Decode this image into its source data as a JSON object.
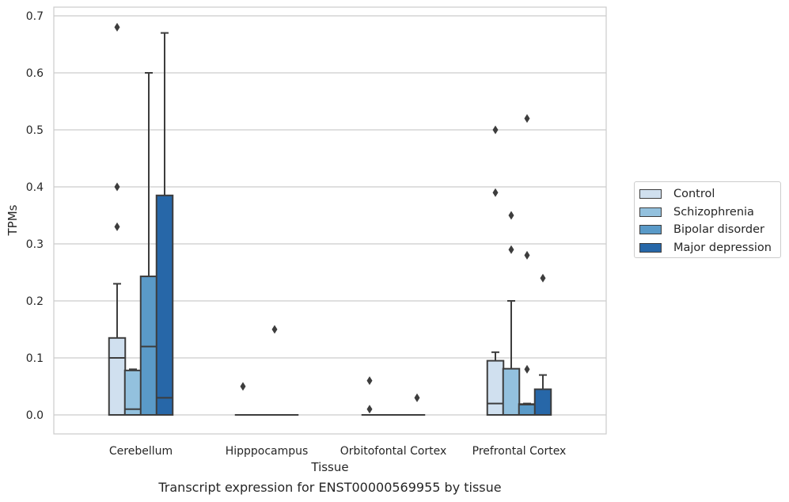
{
  "caption": "Transcript expression for ENST00000569955 by tissue",
  "chart_data": {
    "type": "box",
    "title": "",
    "xlabel": "Tissue",
    "ylabel": "TPMs",
    "ylim": [
      -0.033,
      0.716
    ],
    "yticks": [
      0.0,
      0.1,
      0.2,
      0.3,
      0.4,
      0.5,
      0.6,
      0.7
    ],
    "ytick_labels": [
      "0.0",
      "0.1",
      "0.2",
      "0.3",
      "0.4",
      "0.5",
      "0.6",
      "0.7"
    ],
    "grid": "horizontal",
    "legend_position": "right",
    "categories": [
      "Cerebellum",
      "Hipppocampus",
      "Orbitofontal Cortex",
      "Prefrontal Cortex"
    ],
    "series": [
      {
        "name": "Control",
        "color": "#d0e0ef",
        "boxes": [
          {
            "q1": 0.0,
            "median": 0.1,
            "q3": 0.135,
            "whisker_low": 0.0,
            "whisker_high": 0.23,
            "outliers": [
              0.68,
              0.4,
              0.33
            ]
          },
          {
            "q1": 0.0,
            "median": 0.0,
            "q3": 0.0,
            "whisker_low": 0.0,
            "whisker_high": 0.0,
            "outliers": [
              0.05
            ]
          },
          {
            "q1": 0.0,
            "median": 0.0,
            "q3": 0.0,
            "whisker_low": 0.0,
            "whisker_high": 0.0,
            "outliers": [
              0.06,
              0.01
            ]
          },
          {
            "q1": 0.0,
            "median": 0.02,
            "q3": 0.095,
            "whisker_low": 0.0,
            "whisker_high": 0.11,
            "outliers": [
              0.5,
              0.39
            ]
          }
        ]
      },
      {
        "name": "Schizophrenia",
        "color": "#93c1de",
        "boxes": [
          {
            "q1": 0.0,
            "median": 0.01,
            "q3": 0.078,
            "whisker_low": 0.0,
            "whisker_high": 0.08,
            "outliers": []
          },
          {
            "q1": 0.0,
            "median": 0.0,
            "q3": 0.0,
            "whisker_low": 0.0,
            "whisker_high": 0.0,
            "outliers": []
          },
          {
            "q1": 0.0,
            "median": 0.0,
            "q3": 0.0,
            "whisker_low": 0.0,
            "whisker_high": 0.0,
            "outliers": []
          },
          {
            "q1": 0.0,
            "median": 0.0,
            "q3": 0.081,
            "whisker_low": 0.0,
            "whisker_high": 0.2,
            "outliers": [
              0.35,
              0.29
            ]
          }
        ]
      },
      {
        "name": "Bipolar disorder",
        "color": "#5a9ac8",
        "boxes": [
          {
            "q1": 0.0,
            "median": 0.12,
            "q3": 0.243,
            "whisker_low": 0.0,
            "whisker_high": 0.6,
            "outliers": []
          },
          {
            "q1": 0.0,
            "median": 0.0,
            "q3": 0.0,
            "whisker_low": 0.0,
            "whisker_high": 0.0,
            "outliers": [
              0.15
            ]
          },
          {
            "q1": 0.0,
            "median": 0.0,
            "q3": 0.0,
            "whisker_low": 0.0,
            "whisker_high": 0.0,
            "outliers": []
          },
          {
            "q1": 0.0,
            "median": 0.018,
            "q3": 0.019,
            "whisker_low": 0.0,
            "whisker_high": 0.02,
            "outliers": [
              0.52,
              0.28,
              0.08
            ]
          }
        ]
      },
      {
        "name": "Major depression",
        "color": "#2767a8",
        "boxes": [
          {
            "q1": 0.0,
            "median": 0.03,
            "q3": 0.385,
            "whisker_low": 0.0,
            "whisker_high": 0.67,
            "outliers": []
          },
          {
            "q1": 0.0,
            "median": 0.0,
            "q3": 0.0,
            "whisker_low": 0.0,
            "whisker_high": 0.0,
            "outliers": []
          },
          {
            "q1": 0.0,
            "median": 0.0,
            "q3": 0.0,
            "whisker_low": 0.0,
            "whisker_high": 0.0,
            "outliers": [
              0.03
            ]
          },
          {
            "q1": 0.0,
            "median": 0.0,
            "q3": 0.045,
            "whisker_low": 0.0,
            "whisker_high": 0.07,
            "outliers": [
              0.24
            ]
          }
        ]
      }
    ]
  }
}
